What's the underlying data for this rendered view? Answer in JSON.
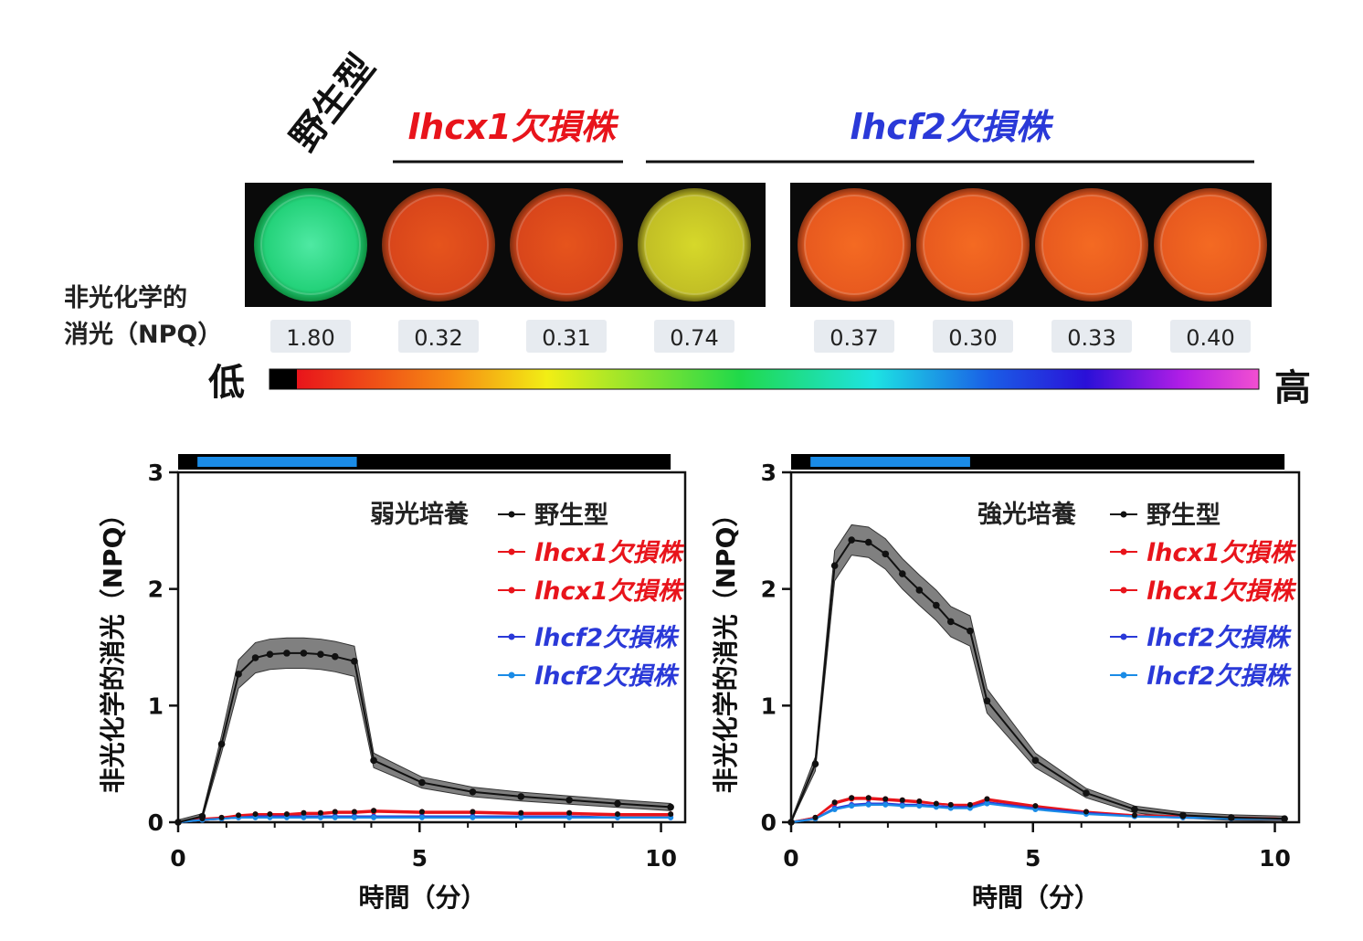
{
  "header": {
    "wt_label": "野生型",
    "lhcx1_label": "lhcx1欠損株",
    "lhcf2_label": "lhcf2欠損株",
    "npq_label_line1": "非光化学的",
    "npq_label_line2": "消光（NPQ）",
    "wells": [
      "1.80",
      "0.32",
      "0.31",
      "0.74",
      "0.37",
      "0.30",
      "0.33",
      "0.40"
    ],
    "scale_low": "低",
    "scale_high": "高",
    "colors": {
      "red": "#e8141b",
      "blue": "#2a39d8"
    }
  },
  "chart_data": [
    {
      "type": "line",
      "condition_label": "弱光培養",
      "xlabel": "時間（分）",
      "ylabel": "非光化学的消光（NPQ）",
      "xlim": [
        0,
        10.5
      ],
      "ylim": [
        0,
        3
      ],
      "xticks": [
        "0",
        "5",
        "10"
      ],
      "yticks": [
        "0",
        "1",
        "2",
        "3"
      ],
      "light_bar": {
        "light_on": [
          0.4,
          3.7
        ],
        "colors": {
          "light": "#1a8be6",
          "dark": "#000000"
        }
      },
      "legend": [
        "野生型",
        "lhcx1欠損株",
        "lhcx1欠損株",
        "lhcf2欠損株",
        "lhcf2欠損株"
      ],
      "series": [
        {
          "name": "野生型",
          "color": "#111111",
          "band": true,
          "x": [
            0,
            0.5,
            0.9,
            1.25,
            1.6,
            1.9,
            2.25,
            2.6,
            2.95,
            3.25,
            3.65,
            4.05,
            5.05,
            6.1,
            7.1,
            8.1,
            9.1,
            10.2
          ],
          "y": [
            0,
            0.05,
            0.67,
            1.27,
            1.41,
            1.44,
            1.45,
            1.45,
            1.44,
            1.42,
            1.38,
            0.53,
            0.34,
            0.26,
            0.22,
            0.19,
            0.16,
            0.13
          ]
        },
        {
          "name": "lhcx1欠損株",
          "color": "#e8141b",
          "x": [
            0,
            0.5,
            0.9,
            1.25,
            1.6,
            1.9,
            2.25,
            2.6,
            2.95,
            3.25,
            3.65,
            4.05,
            5.05,
            6.1,
            7.1,
            8.1,
            9.1,
            10.2
          ],
          "y": [
            0,
            0.03,
            0.04,
            0.06,
            0.07,
            0.07,
            0.07,
            0.08,
            0.08,
            0.09,
            0.09,
            0.1,
            0.09,
            0.09,
            0.08,
            0.08,
            0.07,
            0.07
          ]
        },
        {
          "name": "lhcx1欠損株",
          "color": "#e8141b",
          "x": [
            0,
            0.5,
            0.9,
            1.25,
            1.6,
            1.9,
            2.25,
            2.6,
            2.95,
            3.25,
            3.65,
            4.05,
            5.05,
            6.1,
            7.1,
            8.1,
            9.1,
            10.2
          ],
          "y": [
            0,
            0.02,
            0.03,
            0.05,
            0.06,
            0.06,
            0.06,
            0.07,
            0.07,
            0.08,
            0.08,
            0.09,
            0.08,
            0.08,
            0.07,
            0.07,
            0.06,
            0.06
          ]
        },
        {
          "name": "lhcf2欠損株",
          "color": "#2a39d8",
          "x": [
            0,
            0.5,
            0.9,
            1.25,
            1.6,
            1.9,
            2.25,
            2.6,
            2.95,
            3.25,
            3.65,
            4.05,
            5.05,
            6.1,
            7.1,
            8.1,
            9.1,
            10.2
          ],
          "y": [
            0,
            0.02,
            0.03,
            0.04,
            0.05,
            0.05,
            0.05,
            0.05,
            0.05,
            0.05,
            0.05,
            0.05,
            0.05,
            0.05,
            0.05,
            0.05,
            0.04,
            0.04
          ]
        },
        {
          "name": "lhcf2欠損株",
          "color": "#1a8be6",
          "x": [
            0,
            0.5,
            0.9,
            1.25,
            1.6,
            1.9,
            2.25,
            2.6,
            2.95,
            3.25,
            3.65,
            4.05,
            5.05,
            6.1,
            7.1,
            8.1,
            9.1,
            10.2
          ],
          "y": [
            0,
            0.02,
            0.03,
            0.04,
            0.04,
            0.04,
            0.04,
            0.04,
            0.04,
            0.04,
            0.04,
            0.04,
            0.04,
            0.04,
            0.04,
            0.04,
            0.04,
            0.04
          ]
        }
      ]
    },
    {
      "type": "line",
      "condition_label": "強光培養",
      "xlabel": "時間（分）",
      "ylabel": "非光化学的消光（NPQ）",
      "xlim": [
        0,
        10.5
      ],
      "ylim": [
        0,
        3
      ],
      "xticks": [
        "0",
        "5",
        "10"
      ],
      "yticks": [
        "0",
        "1",
        "2",
        "3"
      ],
      "light_bar": {
        "light_on": [
          0.4,
          3.7
        ],
        "colors": {
          "light": "#1a8be6",
          "dark": "#000000"
        }
      },
      "legend": [
        "野生型",
        "lhcx1欠損株",
        "lhcx1欠損株",
        "lhcf2欠損株",
        "lhcf2欠損株"
      ],
      "series": [
        {
          "name": "野生型",
          "color": "#111111",
          "band": true,
          "x": [
            0,
            0.5,
            0.9,
            1.25,
            1.6,
            1.95,
            2.3,
            2.65,
            3.0,
            3.3,
            3.7,
            4.05,
            5.05,
            6.1,
            7.1,
            8.1,
            9.1,
            10.2
          ],
          "y": [
            0,
            0.5,
            2.2,
            2.42,
            2.4,
            2.3,
            2.13,
            1.99,
            1.86,
            1.72,
            1.64,
            1.04,
            0.53,
            0.25,
            0.11,
            0.06,
            0.04,
            0.03
          ]
        },
        {
          "name": "lhcx1欠損株",
          "color": "#e8141b",
          "x": [
            0,
            0.5,
            0.9,
            1.25,
            1.6,
            1.95,
            2.3,
            2.65,
            3.0,
            3.3,
            3.7,
            4.05,
            5.05,
            6.1,
            7.1,
            8.1,
            9.1,
            10.2
          ],
          "y": [
            0,
            0.04,
            0.17,
            0.21,
            0.21,
            0.2,
            0.19,
            0.18,
            0.16,
            0.15,
            0.15,
            0.2,
            0.14,
            0.09,
            0.06,
            0.05,
            0.04,
            0.03
          ]
        },
        {
          "name": "lhcx1欠損株",
          "color": "#e8141b",
          "x": [
            0,
            0.5,
            0.9,
            1.25,
            1.6,
            1.95,
            2.3,
            2.65,
            3.0,
            3.3,
            3.7,
            4.05,
            5.05,
            6.1,
            7.1,
            8.1,
            9.1,
            10.2
          ],
          "y": [
            0,
            0.04,
            0.16,
            0.2,
            0.2,
            0.19,
            0.18,
            0.17,
            0.16,
            0.15,
            0.14,
            0.19,
            0.13,
            0.08,
            0.06,
            0.05,
            0.04,
            0.03
          ]
        },
        {
          "name": "lhcf2欠損株",
          "color": "#2a39d8",
          "x": [
            0,
            0.5,
            0.9,
            1.25,
            1.6,
            1.95,
            2.3,
            2.65,
            3.0,
            3.3,
            3.7,
            4.05,
            5.05,
            6.1,
            7.1,
            8.1,
            9.1,
            10.2
          ],
          "y": [
            0,
            0.03,
            0.12,
            0.15,
            0.16,
            0.16,
            0.15,
            0.15,
            0.14,
            0.13,
            0.13,
            0.17,
            0.12,
            0.08,
            0.05,
            0.04,
            0.03,
            0.03
          ]
        },
        {
          "name": "lhcf2欠損株",
          "color": "#1a8be6",
          "x": [
            0,
            0.5,
            0.9,
            1.25,
            1.6,
            1.95,
            2.3,
            2.65,
            3.0,
            3.3,
            3.7,
            4.05,
            5.05,
            6.1,
            7.1,
            8.1,
            9.1,
            10.2
          ],
          "y": [
            0,
            0.03,
            0.11,
            0.14,
            0.15,
            0.15,
            0.14,
            0.14,
            0.13,
            0.12,
            0.12,
            0.16,
            0.11,
            0.07,
            0.05,
            0.04,
            0.03,
            0.03
          ]
        }
      ]
    }
  ]
}
